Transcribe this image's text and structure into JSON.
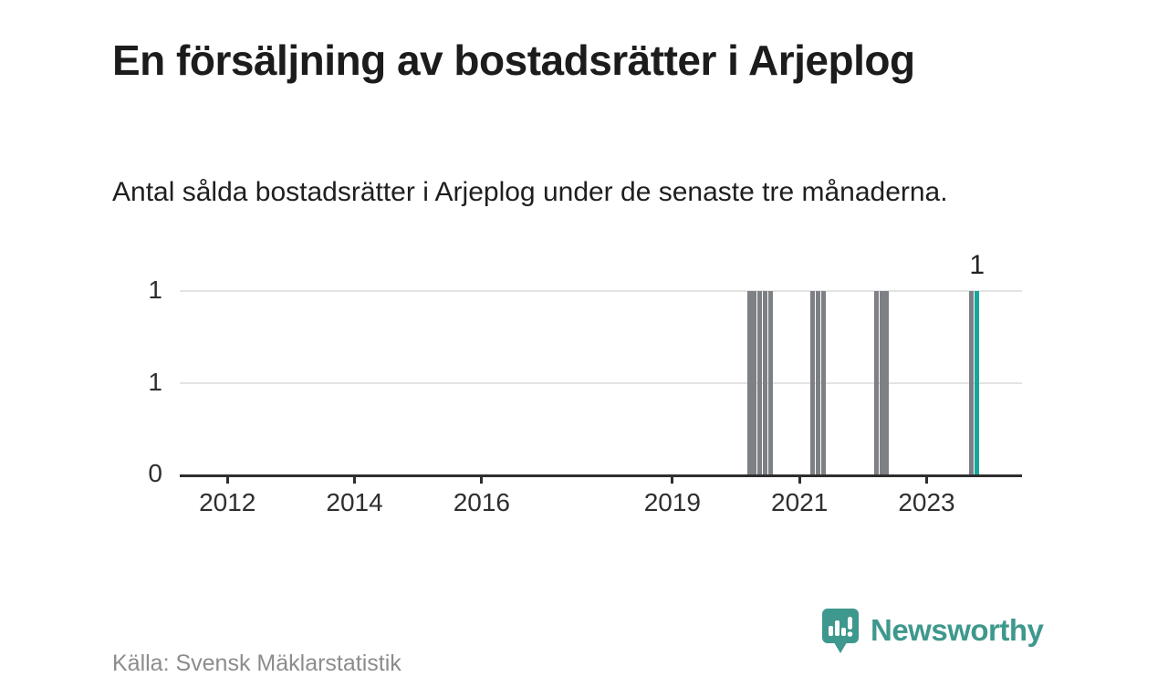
{
  "title": "En försäljning av bostadsrätter i Arjeplog",
  "subtitle": "Antal sålda bostadsrätter i Arjeplog under de senaste tre månaderna.",
  "source": "Källa: Svensk Mäklarstatistik",
  "branding": {
    "logo_text": "Newsworthy",
    "logo_color": "#3e988d"
  },
  "chart_data": {
    "type": "bar",
    "title": "En försäljning av bostadsrätter i Arjeplog",
    "subtitle": "Antal sålda bostadsrätter i Arjeplog under de senaste tre månaderna.",
    "xlabel": "",
    "ylabel": "",
    "x_domain_years": [
      2011.25,
      2024.5
    ],
    "x_tick_years": [
      2012,
      2014,
      2016,
      2019,
      2021,
      2023
    ],
    "x_tick_labels": [
      "2012",
      "2014",
      "2016",
      "2019",
      "2021",
      "2023"
    ],
    "y_ticks": [
      {
        "value": 0,
        "label": "0"
      },
      {
        "value": 0.5,
        "label": "1"
      },
      {
        "value": 1,
        "label": "1"
      }
    ],
    "ylim": [
      0,
      1
    ],
    "grid": "horizontal",
    "legend": "none",
    "bar_color": "#7d8084",
    "highlight_color": "#16a69b",
    "bars": [
      {
        "month": "2020-03",
        "value": 1
      },
      {
        "month": "2020-04",
        "value": 1
      },
      {
        "month": "2020-05",
        "value": 1
      },
      {
        "month": "2020-06",
        "value": 1
      },
      {
        "month": "2020-07",
        "value": 1
      },
      {
        "month": "2021-03",
        "value": 1
      },
      {
        "month": "2021-04",
        "value": 1
      },
      {
        "month": "2021-05",
        "value": 1
      },
      {
        "month": "2022-03",
        "value": 1
      },
      {
        "month": "2022-04",
        "value": 1
      },
      {
        "month": "2022-05",
        "value": 1
      },
      {
        "month": "2023-09",
        "value": 1
      },
      {
        "month": "2023-10",
        "value": 1
      }
    ],
    "all_other_months_value": 0,
    "highlight_month": "2023-10",
    "annotation": {
      "text": "1",
      "month": "2023-10"
    }
  }
}
